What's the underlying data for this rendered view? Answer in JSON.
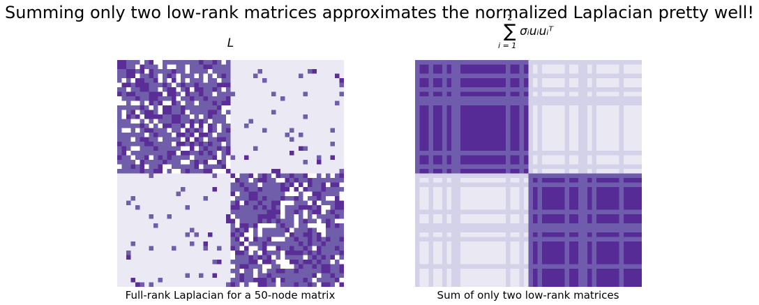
{
  "title": "Summing only two low-rank matrices approximates the normalized Laplacian pretty well!",
  "chart_data": [
    {
      "type": "heatmap",
      "title": "L",
      "xlabel": "Full-rank Laplacian for a 50-node matrix",
      "ylabel": "",
      "n": 50,
      "note_values": "cell values: 0 = empty, 1 = light, 2 = medium, 3 = dark",
      "colors": [
        "#ffffff",
        "#ebe9f4",
        "#705eab",
        "#5a2d97"
      ],
      "seed": 7,
      "community_split": 25,
      "in_block": {
        "empty": 0.2,
        "dark": 0.22
      },
      "off_block": {
        "medium": 0.04,
        "dark": 0.01
      }
    },
    {
      "type": "heatmap",
      "title": "Σ σᵢuᵢuᵢᵀ",
      "title_sum_upper": "2",
      "title_sum_lower": "i = 1",
      "title_term": "σᵢuᵢuᵢᵀ",
      "xlabel": "Sum of only two low-rank matrices",
      "ylabel": "",
      "n": 50,
      "colors": [
        "#e9e8f3",
        "#d3d2e8",
        "#6f5cad",
        "#562b96"
      ],
      "seed": 11,
      "community_split": 25
    }
  ]
}
